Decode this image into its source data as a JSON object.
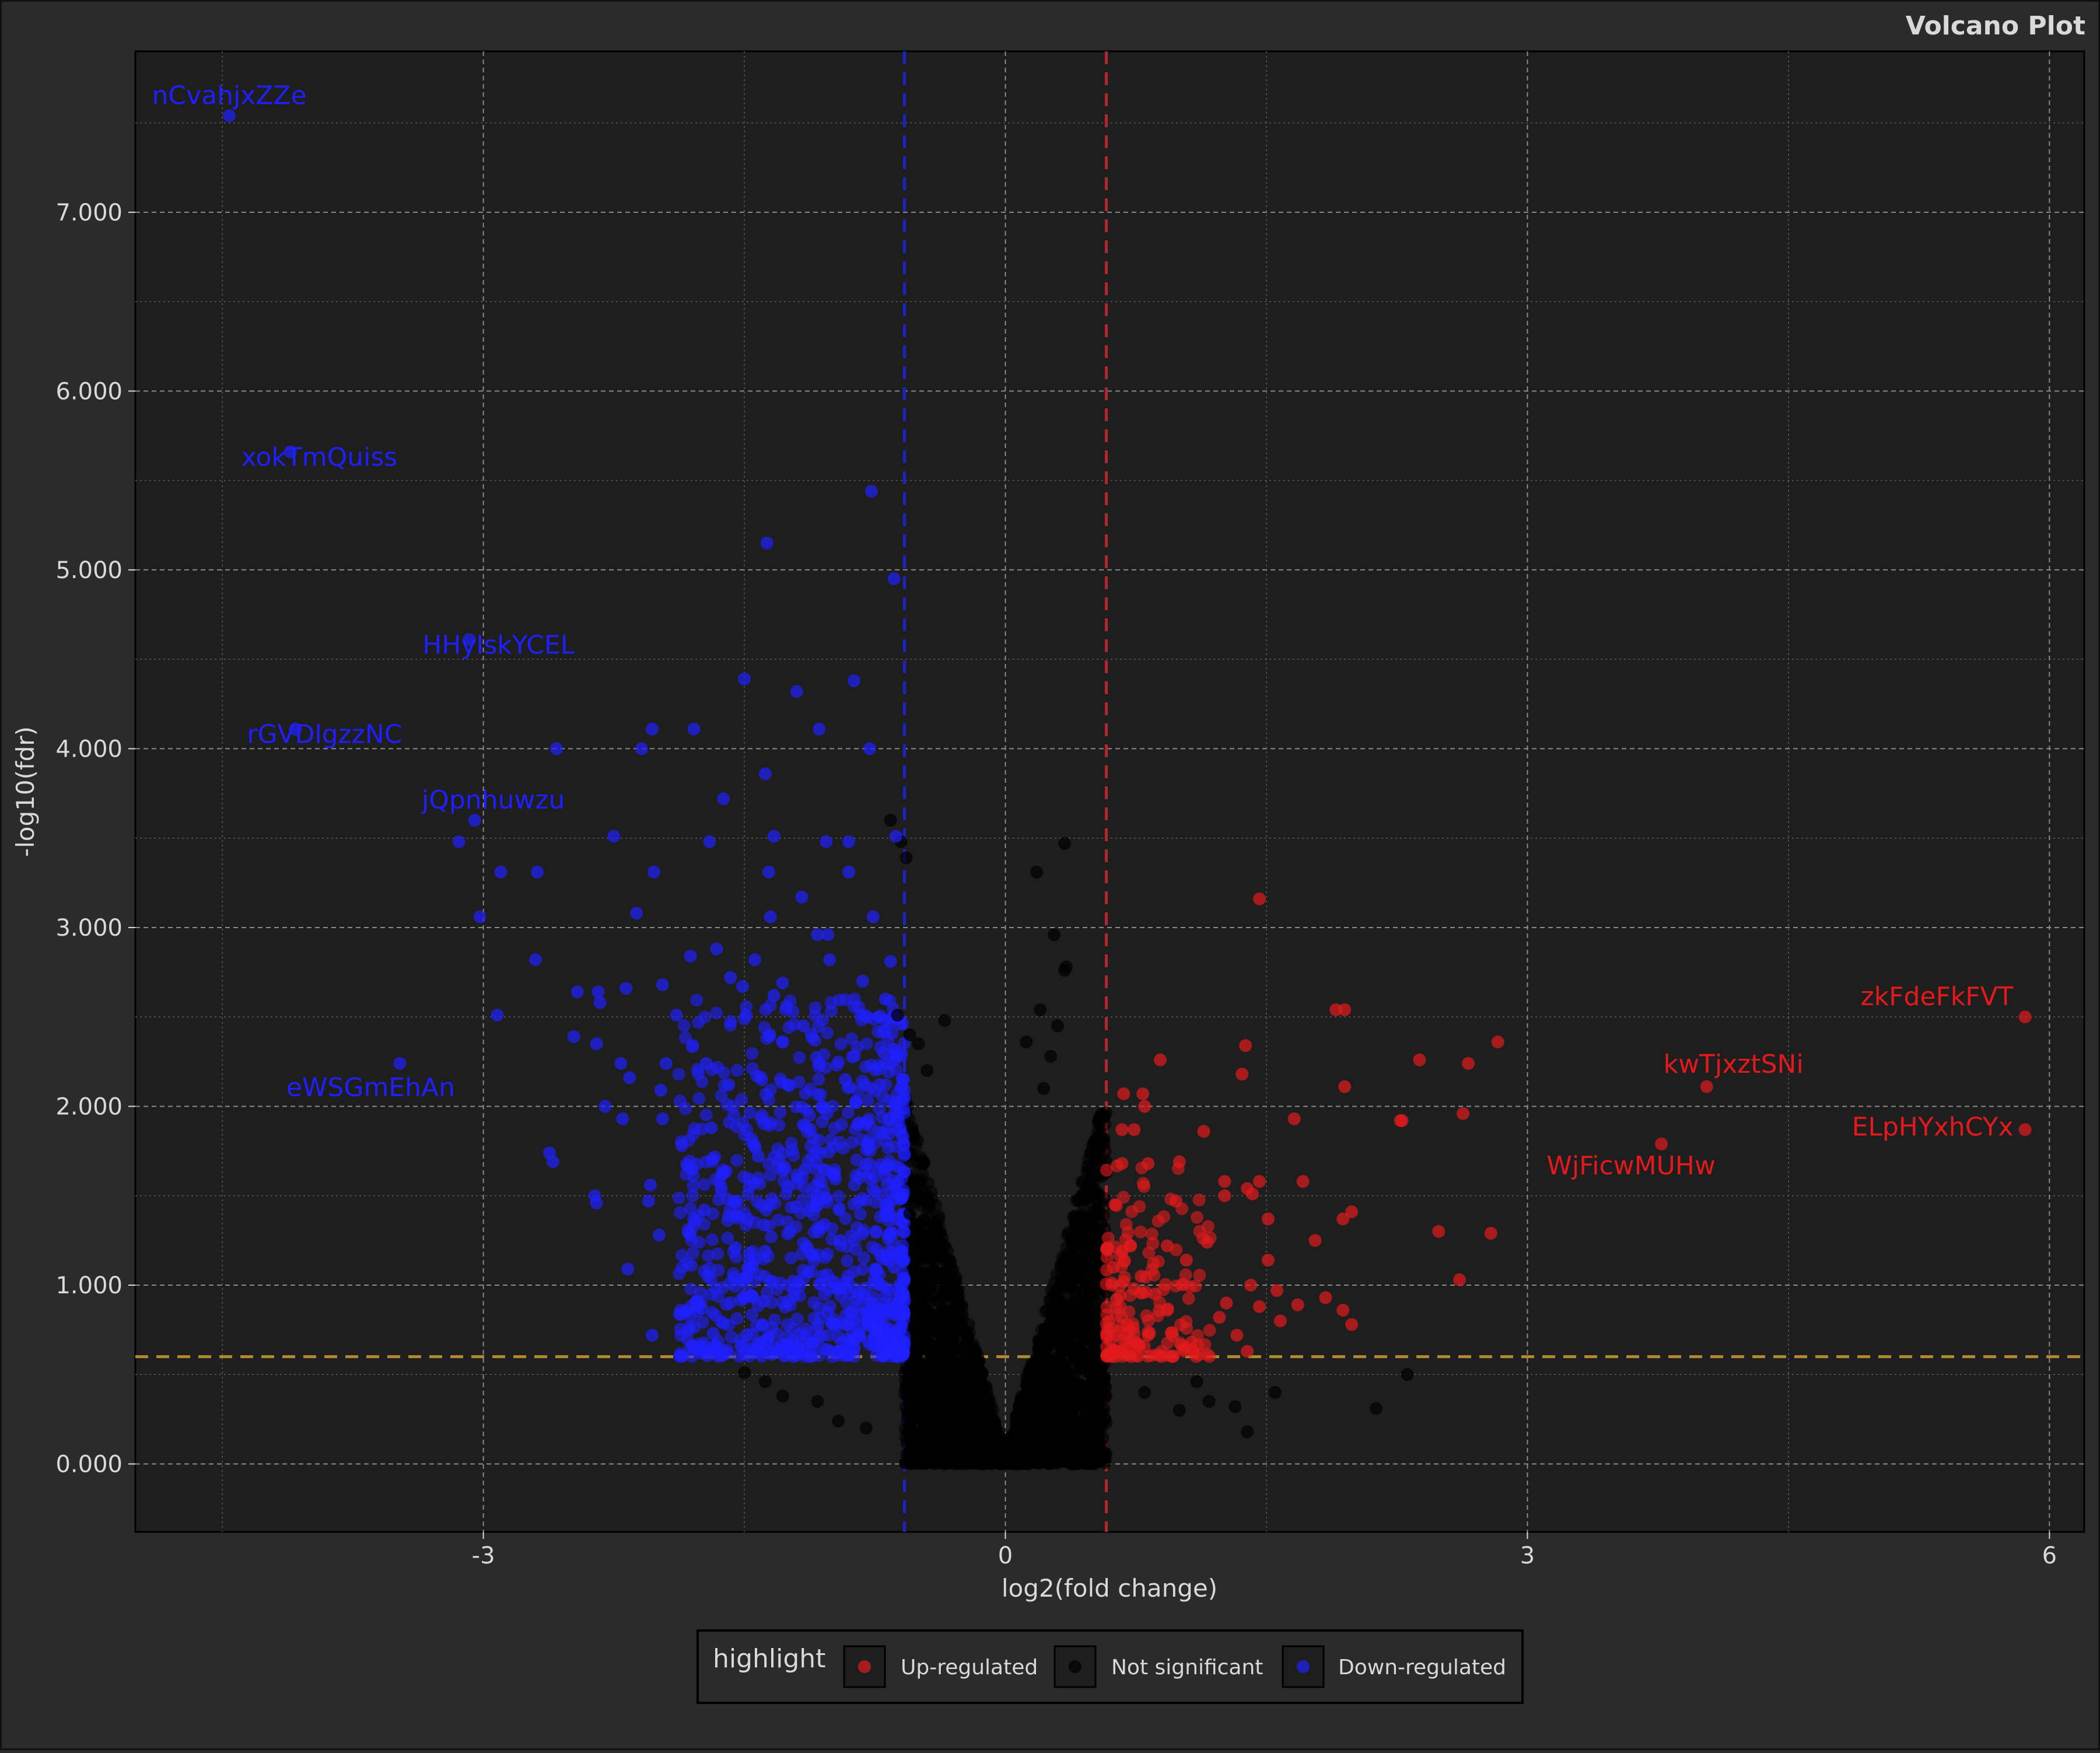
{
  "chart_data": {
    "type": "scatter",
    "title": "Volcano Plot",
    "xlabel": "log2(fold change)",
    "ylabel": "-log10(fdr)",
    "xlim": [
      -5.0,
      6.2
    ],
    "ylim": [
      -0.38,
      7.9
    ],
    "x_ticks": [
      {
        "value": -3,
        "label": "-3"
      },
      {
        "value": 0,
        "label": "0"
      },
      {
        "value": 3,
        "label": "3"
      },
      {
        "value": 6,
        "label": "6"
      }
    ],
    "y_ticks": [
      {
        "value": 0,
        "label": "0.000"
      },
      {
        "value": 1,
        "label": "1.000"
      },
      {
        "value": 2,
        "label": "2.000"
      },
      {
        "value": 3,
        "label": "3.000"
      },
      {
        "value": 4,
        "label": "4.000"
      },
      {
        "value": 5,
        "label": "5.000"
      },
      {
        "value": 6,
        "label": "6.000"
      },
      {
        "value": 7,
        "label": "7.000"
      }
    ],
    "grid": true,
    "thresholds": {
      "log2fc_down": -0.58,
      "log2fc_up": 0.58,
      "neg_log10_fdr": 0.6
    },
    "colors": {
      "up": "#e31a1c",
      "down": "#1f1fff",
      "ns": "#000000",
      "background": "#1e1e1e",
      "panel_outer": "#2b2b2b",
      "title": "#d9d9d9",
      "down_line": "#2020c8",
      "up_line": "#b3262b",
      "fdr_line": "#b38b2e"
    },
    "legend": {
      "title": "highlight",
      "position": "bottom",
      "entries": [
        {
          "label": "Up-regulated",
          "color": "#e31a1c"
        },
        {
          "label": "Not significant",
          "color": "#000000"
        },
        {
          "label": "Down-regulated",
          "color": "#1f1fff"
        }
      ]
    },
    "labeled_points": [
      {
        "label": "nCvahjxZZe",
        "x": -4.46,
        "y": 7.54,
        "group": "down"
      },
      {
        "label": "xokTmQuiss",
        "x": -4.11,
        "y": 5.66,
        "group": "down"
      },
      {
        "label": "HHyIskYCEL",
        "x": -3.08,
        "y": 4.61,
        "group": "down"
      },
      {
        "label": "rGVDlgzzNC",
        "x": -4.08,
        "y": 4.11,
        "group": "down"
      },
      {
        "label": "jQpnhuwzu",
        "x": -3.05,
        "y": 3.6,
        "group": "down"
      },
      {
        "label": "eWSGmEhAn",
        "x": -3.48,
        "y": 2.24,
        "group": "down"
      },
      {
        "label": "zkFdeFkFVT",
        "x": 5.86,
        "y": 2.5,
        "group": "up"
      },
      {
        "label": "kwTjxztSNi",
        "x": 4.03,
        "y": 2.11,
        "group": "up"
      },
      {
        "label": "ELpHYxhCYx",
        "x": 5.86,
        "y": 1.87,
        "group": "up"
      },
      {
        "label": "WjFicwMUHw",
        "x": 3.77,
        "y": 1.79,
        "group": "up"
      }
    ],
    "down_points": [
      [
        -4.46,
        7.54
      ],
      [
        -4.11,
        5.66
      ],
      [
        -3.08,
        4.61
      ],
      [
        -4.08,
        4.11
      ],
      [
        -3.05,
        3.6
      ],
      [
        -3.48,
        2.24
      ],
      [
        -0.77,
        5.44
      ],
      [
        -1.37,
        5.15
      ],
      [
        -0.64,
        4.95
      ],
      [
        -1.5,
        4.39
      ],
      [
        -1.2,
        4.32
      ],
      [
        -0.87,
        4.38
      ],
      [
        -2.03,
        4.11
      ],
      [
        -1.79,
        4.11
      ],
      [
        -1.07,
        4.11
      ],
      [
        -2.58,
        4.0
      ],
      [
        -2.09,
        4.0
      ],
      [
        -0.78,
        4.0
      ],
      [
        -1.38,
        3.86
      ],
      [
        -1.62,
        3.72
      ],
      [
        -3.14,
        3.48
      ],
      [
        -2.25,
        3.51
      ],
      [
        -1.7,
        3.48
      ],
      [
        -1.33,
        3.51
      ],
      [
        -1.03,
        3.48
      ],
      [
        -0.9,
        3.48
      ],
      [
        -0.63,
        3.51
      ],
      [
        -2.9,
        3.31
      ],
      [
        -2.69,
        3.31
      ],
      [
        -2.02,
        3.31
      ],
      [
        -1.36,
        3.31
      ],
      [
        -0.9,
        3.31
      ],
      [
        -1.17,
        3.17
      ],
      [
        -2.12,
        3.08
      ],
      [
        -3.02,
        3.06
      ],
      [
        -1.35,
        3.06
      ],
      [
        -0.76,
        3.06
      ],
      [
        -1.08,
        2.96
      ],
      [
        -1.02,
        2.96
      ],
      [
        -1.66,
        2.88
      ],
      [
        -1.81,
        2.84
      ],
      [
        -1.44,
        2.82
      ],
      [
        -2.7,
        2.82
      ],
      [
        -1.01,
        2.82
      ],
      [
        -0.66,
        2.81
      ],
      [
        -1.58,
        2.72
      ],
      [
        -2.46,
        2.64
      ],
      [
        -2.34,
        2.64
      ],
      [
        -2.18,
        2.66
      ],
      [
        -1.97,
        2.68
      ],
      [
        -1.28,
        2.69
      ],
      [
        -0.82,
        2.7
      ],
      [
        -2.33,
        2.58
      ],
      [
        -1.51,
        2.67
      ],
      [
        -1.33,
        2.62
      ],
      [
        -0.69,
        2.6
      ],
      [
        -2.92,
        2.51
      ],
      [
        -1.89,
        2.51
      ],
      [
        -1.49,
        2.51
      ],
      [
        -2.48,
        2.39
      ],
      [
        -1.16,
        2.45
      ],
      [
        -2.35,
        2.35
      ],
      [
        -2.21,
        2.24
      ],
      [
        -1.95,
        2.24
      ],
      [
        -1.72,
        2.24
      ],
      [
        -1.07,
        2.24
      ],
      [
        -2.16,
        2.16
      ],
      [
        -1.98,
        2.09
      ],
      [
        -1.59,
        2.12
      ],
      [
        -1.25,
        2.12
      ],
      [
        -0.86,
        2.02
      ],
      [
        -2.3,
        2.0
      ],
      [
        -2.2,
        1.93
      ],
      [
        -1.97,
        1.93
      ],
      [
        -1.69,
        1.88
      ],
      [
        -1.12,
        1.87
      ],
      [
        -0.85,
        1.9
      ],
      [
        -1.86,
        1.78
      ],
      [
        -1.44,
        1.78
      ],
      [
        -2.62,
        1.74
      ],
      [
        -2.6,
        1.69
      ],
      [
        -1.8,
        1.65
      ],
      [
        -1.63,
        1.62
      ],
      [
        -2.04,
        1.56
      ],
      [
        -2.36,
        1.5
      ],
      [
        -2.35,
        1.46
      ],
      [
        -2.05,
        1.47
      ],
      [
        -1.55,
        1.46
      ],
      [
        -1.73,
        1.42
      ],
      [
        -1.48,
        1.37
      ],
      [
        -1.99,
        1.28
      ],
      [
        -1.81,
        1.28
      ],
      [
        -1.55,
        1.21
      ],
      [
        -1.38,
        1.19
      ],
      [
        -2.17,
        1.09
      ],
      [
        -1.71,
        1.05
      ],
      [
        -1.51,
        1.02
      ],
      [
        -1.39,
        0.91
      ],
      [
        -2.03,
        0.72
      ],
      [
        -1.68,
        0.73
      ],
      [
        -1.52,
        0.66
      ],
      [
        -1.36,
        0.71
      ],
      [
        -1.22,
        0.69
      ],
      [
        -0.96,
        0.63
      ],
      [
        -0.75,
        0.72
      ],
      [
        -0.69,
        0.62
      ],
      [
        -0.84,
        1.6
      ],
      [
        -0.71,
        1.85
      ],
      [
        -0.95,
        1.25
      ],
      [
        -1.08,
        1.45
      ],
      [
        -0.64,
        1.1
      ],
      [
        -0.62,
        0.9
      ],
      [
        -0.88,
        0.85
      ],
      [
        -1.25,
        1.55
      ],
      [
        -1.15,
        1.65
      ],
      [
        -0.7,
        2.3
      ],
      [
        -0.92,
        2.15
      ],
      [
        -1.05,
        1.05
      ],
      [
        -0.98,
        0.78
      ],
      [
        -1.42,
        1.72
      ]
    ],
    "up_points": [
      [
        1.46,
        3.16
      ],
      [
        1.9,
        2.54
      ],
      [
        1.95,
        2.54
      ],
      [
        1.38,
        2.34
      ],
      [
        2.83,
        2.36
      ],
      [
        0.89,
        2.26
      ],
      [
        2.38,
        2.26
      ],
      [
        2.66,
        2.24
      ],
      [
        1.36,
        2.18
      ],
      [
        1.95,
        2.11
      ],
      [
        4.03,
        2.11
      ],
      [
        0.68,
        2.07
      ],
      [
        0.79,
        2.07
      ],
      [
        0.8,
        2.0
      ],
      [
        2.63,
        1.96
      ],
      [
        1.66,
        1.93
      ],
      [
        2.27,
        1.92
      ],
      [
        2.28,
        1.92
      ],
      [
        0.67,
        1.87
      ],
      [
        0.74,
        1.87
      ],
      [
        1.14,
        1.86
      ],
      [
        3.77,
        1.79
      ],
      [
        5.86,
        1.87
      ],
      [
        5.86,
        2.5
      ],
      [
        1.0,
        1.69
      ],
      [
        0.67,
        1.68
      ],
      [
        0.82,
        1.68
      ],
      [
        1.26,
        1.58
      ],
      [
        1.46,
        1.58
      ],
      [
        1.71,
        1.58
      ],
      [
        1.39,
        1.54
      ],
      [
        1.42,
        1.51
      ],
      [
        1.26,
        1.5
      ],
      [
        0.98,
        1.47
      ],
      [
        0.63,
        1.45
      ],
      [
        1.99,
        1.41
      ],
      [
        1.51,
        1.37
      ],
      [
        1.94,
        1.37
      ],
      [
        2.49,
        1.3
      ],
      [
        2.79,
        1.29
      ],
      [
        0.93,
        1.22
      ],
      [
        1.16,
        1.24
      ],
      [
        1.78,
        1.25
      ],
      [
        0.72,
        1.22
      ],
      [
        0.62,
        1.1
      ],
      [
        1.04,
        1.14
      ],
      [
        1.51,
        1.14
      ],
      [
        0.78,
        1.05
      ],
      [
        1.41,
        1.0
      ],
      [
        1.56,
        0.97
      ],
      [
        0.66,
        0.94
      ],
      [
        1.27,
        0.9
      ],
      [
        1.84,
        0.93
      ],
      [
        2.61,
        1.03
      ],
      [
        0.93,
        0.86
      ],
      [
        1.23,
        0.82
      ],
      [
        1.46,
        0.88
      ],
      [
        1.94,
        0.86
      ],
      [
        1.68,
        0.89
      ],
      [
        1.58,
        0.8
      ],
      [
        1.99,
        0.78
      ],
      [
        1.33,
        0.72
      ],
      [
        1.07,
        0.68
      ],
      [
        0.82,
        0.72
      ],
      [
        1.39,
        0.63
      ],
      [
        0.66,
        0.63
      ],
      [
        0.7,
        0.78
      ],
      [
        0.64,
        0.92
      ],
      [
        0.74,
        0.98
      ],
      [
        0.68,
        1.02
      ],
      [
        0.86,
        0.95
      ],
      [
        0.77,
        0.66
      ]
    ],
    "ns_points": [
      [
        -0.66,
        3.6
      ],
      [
        -0.6,
        3.48
      ],
      [
        -0.57,
        3.39
      ],
      [
        0.34,
        3.47
      ],
      [
        0.35,
        2.78
      ],
      [
        0.34,
        2.76
      ],
      [
        0.18,
        3.31
      ],
      [
        0.28,
        2.96
      ],
      [
        -0.62,
        2.51
      ],
      [
        -0.55,
        2.4
      ],
      [
        -0.5,
        2.35
      ],
      [
        -0.45,
        2.2
      ],
      [
        0.2,
        2.54
      ],
      [
        0.3,
        2.45
      ],
      [
        0.26,
        2.28
      ],
      [
        0.22,
        2.1
      ],
      [
        -0.35,
        2.48
      ],
      [
        0.12,
        2.36
      ],
      [
        -0.55,
        1.4
      ],
      [
        -0.5,
        1.0
      ],
      [
        -0.44,
        0.8
      ],
      [
        -0.4,
        0.6
      ],
      [
        -0.3,
        0.3
      ],
      [
        -0.2,
        0.1
      ],
      [
        0.2,
        0.1
      ],
      [
        0.3,
        0.3
      ],
      [
        0.4,
        0.6
      ],
      [
        0.45,
        0.9
      ],
      [
        0.5,
        1.3
      ],
      [
        0.52,
        1.7
      ],
      [
        -1.38,
        0.46
      ],
      [
        -1.28,
        0.38
      ],
      [
        -1.08,
        0.35
      ],
      [
        -0.96,
        0.24
      ],
      [
        -0.8,
        0.2
      ],
      [
        1.1,
        0.46
      ],
      [
        1.17,
        0.35
      ],
      [
        1.32,
        0.32
      ],
      [
        1.39,
        0.18
      ],
      [
        1.55,
        0.4
      ],
      [
        2.13,
        0.31
      ],
      [
        2.31,
        0.5
      ],
      [
        -1.5,
        0.51
      ],
      [
        0.8,
        0.4
      ],
      [
        1.0,
        0.3
      ],
      [
        -0.3,
        0.7
      ],
      [
        0.1,
        0.03
      ],
      [
        -0.1,
        0.03
      ]
    ]
  }
}
